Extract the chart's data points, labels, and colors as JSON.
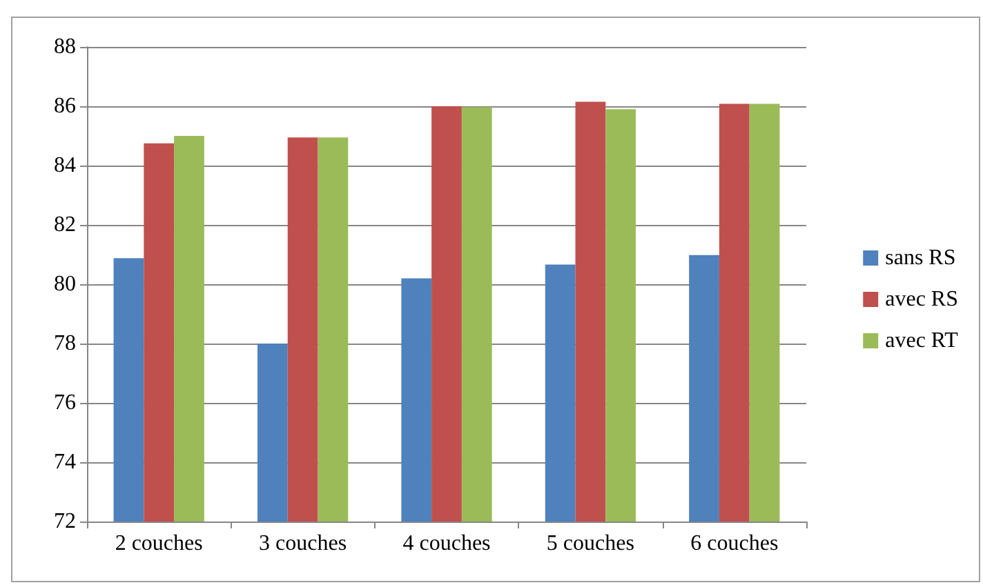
{
  "chart_data": {
    "type": "bar",
    "categories": [
      "2 couches",
      "3 couches",
      "4 couches",
      "5 couches",
      "6 couches"
    ],
    "series": [
      {
        "name": "sans RS",
        "color": "#4f81bd",
        "values": [
          80.88,
          78.0,
          80.2,
          80.66,
          80.98
        ]
      },
      {
        "name": "avec RS",
        "color": "#c0504d",
        "values": [
          84.75,
          84.95,
          86.0,
          86.15,
          86.08
        ]
      },
      {
        "name": "avec RT",
        "color": "#9bbb59",
        "values": [
          85.0,
          84.95,
          85.97,
          85.9,
          86.08
        ]
      }
    ],
    "ylim": [
      72,
      88
    ],
    "yticks": [
      72,
      74,
      76,
      78,
      80,
      82,
      84,
      86,
      88
    ],
    "grid": "y",
    "legend": "right"
  }
}
